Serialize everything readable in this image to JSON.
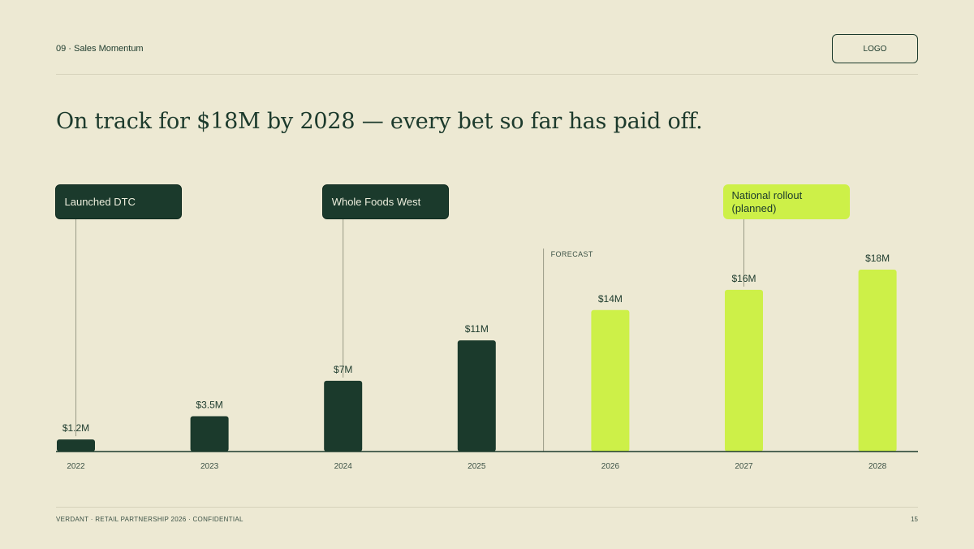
{
  "header": {
    "section_label": "09 · Sales Momentum",
    "logo_label": "LOGO"
  },
  "headline": "On track for $18M by 2028 — every bet so far has paid off.",
  "chart_data": {
    "type": "bar",
    "categories": [
      "2022",
      "2023",
      "2024",
      "2025",
      "2026",
      "2027",
      "2028"
    ],
    "values": [
      1.2,
      3.5,
      7,
      11,
      14,
      16,
      18
    ],
    "data_labels": [
      "$1.2M",
      "$3.5M",
      "$7M",
      "$11M",
      "$14M",
      "$16M",
      "$18M"
    ],
    "forecast_from": "2026",
    "forecast_label": "FORECAST",
    "ylim": [
      0,
      18
    ],
    "grid": false,
    "colors": {
      "actual": "#1b3a2c",
      "forecast": "#cdf048",
      "axis": "#1c3a2c",
      "leader": "#9a9a86"
    },
    "annotations": [
      {
        "category": "2022",
        "text": "Launched DTC",
        "style": "dark"
      },
      {
        "category": "2024",
        "text": "Whole Foods West",
        "style": "dark"
      },
      {
        "category": "2027",
        "text": "National rollout (planned)",
        "style": "lime"
      }
    ]
  },
  "footer": {
    "text": "VERDANT · RETAIL PARTNERSHIP 2026 · CONFIDENTIAL",
    "page_number": "15"
  }
}
